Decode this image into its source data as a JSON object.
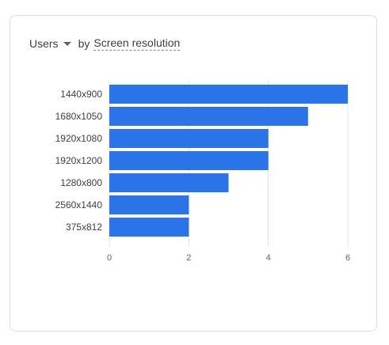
{
  "header": {
    "metric_label": "Users",
    "by_label": "by",
    "dimension_label": "Screen resolution"
  },
  "colors": {
    "bar": "#2a73e8",
    "grid": "#e0e0e0",
    "axis_text": "#5f6368"
  },
  "chart_data": {
    "type": "bar",
    "orientation": "horizontal",
    "categories": [
      "1440x900",
      "1680x1050",
      "1920x1080",
      "1920x1200",
      "1280x800",
      "2560x1440",
      "375x812"
    ],
    "values": [
      6,
      5,
      4,
      4,
      3,
      2,
      2
    ],
    "xlim": [
      0,
      6
    ],
    "xticks": [
      0,
      2,
      4,
      6
    ],
    "grid": true,
    "title": "",
    "xlabel": "",
    "ylabel": ""
  }
}
